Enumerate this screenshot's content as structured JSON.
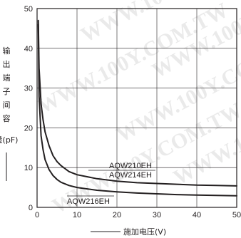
{
  "chart_data": {
    "type": "line",
    "title": "",
    "ylabel": "输出端子间容量(pF)",
    "xlabel": "施加电压(V)",
    "xlim": [
      0,
      50
    ],
    "ylim": [
      0,
      50
    ],
    "x_ticks": [
      0,
      10,
      20,
      30,
      40,
      50
    ],
    "y_ticks": [
      0,
      10,
      20,
      30,
      40,
      50
    ],
    "grid": true,
    "series": [
      {
        "name": "AQW210EH AQW214EH",
        "x": [
          0.3,
          0.5,
          1,
          1.5,
          2,
          3,
          4,
          5,
          6,
          8,
          10,
          15,
          20,
          25,
          30,
          35,
          40,
          45,
          50
        ],
        "values": [
          47,
          35,
          26,
          22,
          19,
          15.5,
          13,
          11.5,
          10.5,
          9,
          8.2,
          7.2,
          6.6,
          6.2,
          6.0,
          5.8,
          5.6,
          5.5,
          5.4
        ]
      },
      {
        "name": "AQW216EH",
        "x": [
          0.3,
          0.5,
          1,
          1.5,
          2,
          3,
          4,
          5,
          6,
          8,
          10,
          15,
          20,
          25,
          30,
          35,
          40,
          45,
          50
        ],
        "values": [
          46,
          28,
          18,
          14.5,
          12,
          9.5,
          8,
          7,
          6.3,
          5.5,
          5.0,
          4.3,
          3.9,
          3.6,
          3.4,
          3.2,
          3.1,
          3.0,
          2.9
        ]
      }
    ],
    "annotations": [
      "AQW210EH",
      "AQW214EH",
      "AQW216EH"
    ],
    "watermark": "WWW.100Y.COM.TW"
  }
}
